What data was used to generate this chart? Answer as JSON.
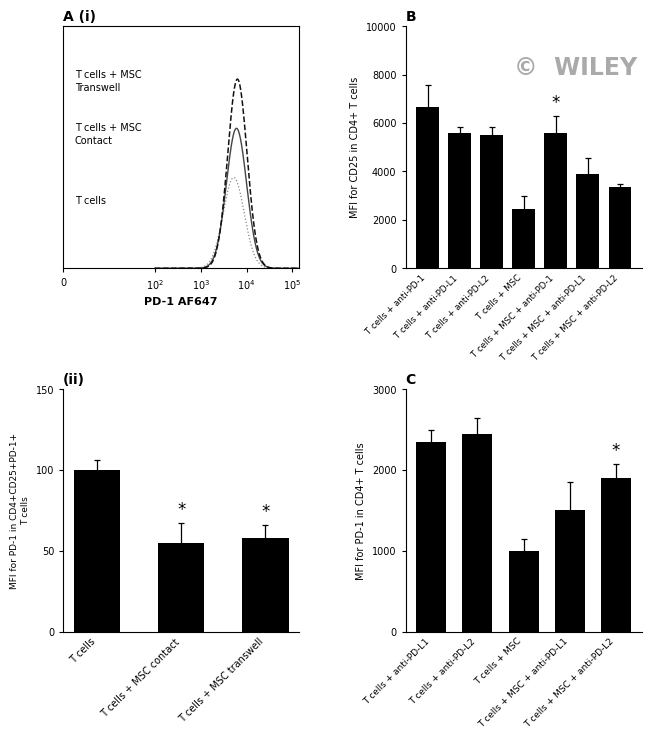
{
  "panel_A_label": "A (i)",
  "panel_B_label": "B",
  "panel_ii_label": "(ii)",
  "panel_C_label": "C",
  "flow_xlabel": "PD-1 AF647",
  "B_categories": [
    "T cells + anti-PD-1",
    "T cells + anti-PD-L1",
    "T cells + anti-PD-L2",
    "T cells + MSC",
    "T cells + MSC + anti-PD-1",
    "T cells + MSC + anti-PD-L1",
    "T cells + MSC + anti-PD-L2"
  ],
  "B_values": [
    6650,
    5600,
    5500,
    2450,
    5600,
    3900,
    3350
  ],
  "B_errors": [
    900,
    250,
    350,
    550,
    700,
    650,
    150
  ],
  "B_ylabel": "MFI for CD25 in CD4+ T cells",
  "B_ylim": [
    0,
    10000
  ],
  "B_yticks": [
    0,
    2000,
    4000,
    6000,
    8000,
    10000
  ],
  "B_star_idx": 4,
  "ii_categories": [
    "T cells",
    "T cells + MSC contact",
    "T cells + MSC transwell"
  ],
  "ii_values": [
    100,
    55,
    58
  ],
  "ii_errors": [
    6,
    12,
    8
  ],
  "ii_ylabel": "MFI for PD-1 in CD4+CD25+PD-1+\nT cells",
  "ii_ylim": [
    0,
    150
  ],
  "ii_yticks": [
    0,
    50,
    100,
    150
  ],
  "ii_star_indices": [
    1,
    2
  ],
  "C_categories": [
    "T cells + anti-PD-L1",
    "T cells + anti-PD-L2",
    "T cells + MSC",
    "T cells + MSC + anti-PD-L1",
    "T cells + MSC + anti-PD-L2"
  ],
  "C_values": [
    2350,
    2450,
    1000,
    1500,
    1900
  ],
  "C_errors": [
    150,
    200,
    150,
    350,
    180
  ],
  "C_ylabel": "MFI for PD-1 in CD4+ T cells",
  "C_ylim": [
    0,
    3000
  ],
  "C_yticks": [
    0,
    1000,
    2000,
    3000
  ],
  "C_star_idx": 4,
  "bar_color": "#000000",
  "bg_color": "#ffffff",
  "wiley_color": "#aaaaaa"
}
